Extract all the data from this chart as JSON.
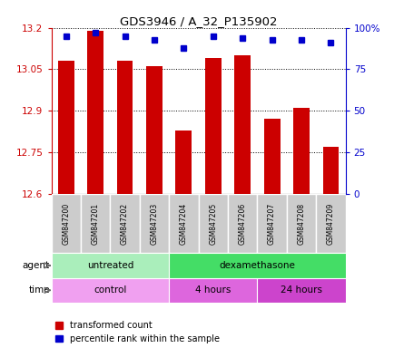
{
  "title": "GDS3946 / A_32_P135902",
  "samples": [
    "GSM847200",
    "GSM847201",
    "GSM847202",
    "GSM847203",
    "GSM847204",
    "GSM847205",
    "GSM847206",
    "GSM847207",
    "GSM847208",
    "GSM847209"
  ],
  "bar_values": [
    13.08,
    13.19,
    13.08,
    13.06,
    12.83,
    13.09,
    13.1,
    12.87,
    12.91,
    12.77
  ],
  "percentile_values": [
    95,
    97,
    95,
    93,
    88,
    95,
    94,
    93,
    93,
    91
  ],
  "ymin": 12.6,
  "ymax": 13.2,
  "yticks": [
    12.6,
    12.75,
    12.9,
    13.05,
    13.2
  ],
  "right_yticks": [
    0,
    25,
    50,
    75,
    100
  ],
  "bar_color": "#cc0000",
  "dot_color": "#0000cc",
  "agent_groups": [
    {
      "label": "untreated",
      "start": 0,
      "end": 4,
      "color": "#aaeebb"
    },
    {
      "label": "dexamethasone",
      "start": 4,
      "end": 10,
      "color": "#44dd66"
    }
  ],
  "time_groups": [
    {
      "label": "control",
      "start": 0,
      "end": 4,
      "color": "#f0a0f0"
    },
    {
      "label": "4 hours",
      "start": 4,
      "end": 7,
      "color": "#dd66dd"
    },
    {
      "label": "24 hours",
      "start": 7,
      "end": 10,
      "color": "#cc44cc"
    }
  ],
  "legend_red_label": "transformed count",
  "legend_blue_label": "percentile rank within the sample",
  "xlabel_agent": "agent",
  "xlabel_time": "time",
  "plot_bg": "#ffffff",
  "sample_bg": "#cccccc",
  "left_axis_color": "#cc0000",
  "right_axis_color": "#0000cc",
  "title_color": "#000000"
}
